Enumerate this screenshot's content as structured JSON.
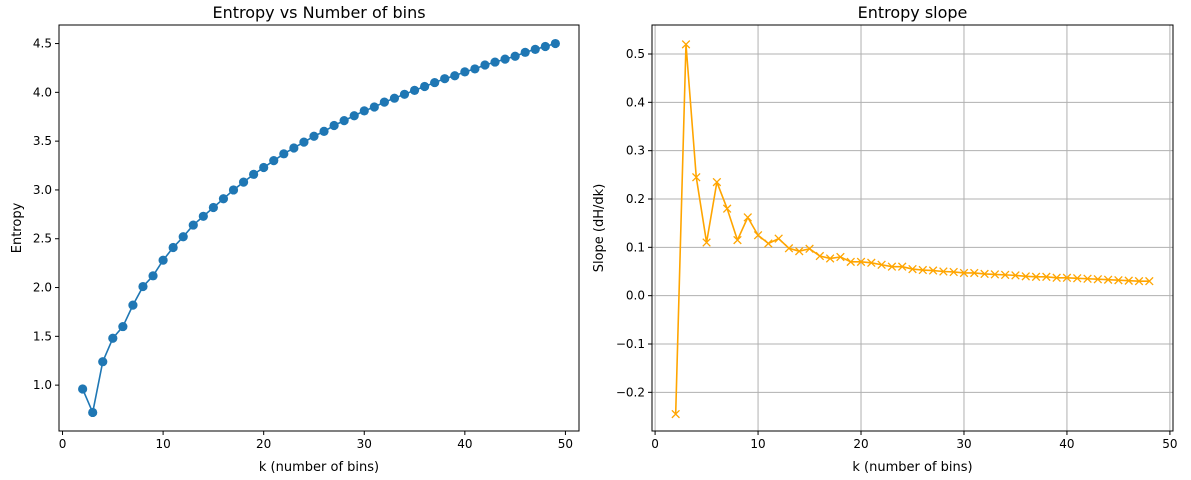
{
  "chart_data": [
    {
      "type": "line",
      "title": "Entropy vs Number of bins",
      "xlabel": "k (number of bins)",
      "ylabel": "Entropy",
      "xlim": [
        -0.35,
        51.35
      ],
      "ylim": [
        0.53,
        4.69
      ],
      "xticks": [
        0,
        10,
        20,
        30,
        40,
        50
      ],
      "yticks": [
        1.0,
        1.5,
        2.0,
        2.5,
        3.0,
        3.5,
        4.0,
        4.5
      ],
      "grid": false,
      "marker": "o",
      "color": "#1f77b4",
      "series": [
        {
          "x": [
            2,
            3,
            4,
            5,
            6,
            7,
            8,
            9,
            10,
            11,
            12,
            13,
            14,
            15,
            16,
            17,
            18,
            19,
            20,
            21,
            22,
            23,
            24,
            25,
            26,
            27,
            28,
            29,
            30,
            31,
            32,
            33,
            34,
            35,
            36,
            37,
            38,
            39,
            40,
            41,
            42,
            43,
            44,
            45,
            46,
            47,
            48,
            49
          ],
          "values": [
            0.96,
            0.72,
            1.24,
            1.48,
            1.6,
            1.82,
            2.01,
            2.12,
            2.28,
            2.41,
            2.52,
            2.64,
            2.73,
            2.82,
            2.91,
            3.0,
            3.08,
            3.16,
            3.23,
            3.3,
            3.37,
            3.43,
            3.49,
            3.55,
            3.6,
            3.66,
            3.71,
            3.76,
            3.81,
            3.85,
            3.9,
            3.94,
            3.98,
            4.02,
            4.06,
            4.1,
            4.14,
            4.17,
            4.21,
            4.24,
            4.28,
            4.31,
            4.34,
            4.37,
            4.41,
            4.44,
            4.47,
            4.5
          ]
        }
      ]
    },
    {
      "type": "line",
      "title": "Entropy slope",
      "xlabel": "k (number of bins)",
      "ylabel": "Slope (dH/dk)",
      "xlim": [
        -0.3,
        50.3
      ],
      "ylim": [
        -0.28,
        0.56
      ],
      "xticks": [
        0,
        10,
        20,
        30,
        40,
        50
      ],
      "yticks": [
        -0.2,
        -0.1,
        0.0,
        0.1,
        0.2,
        0.3,
        0.4,
        0.5
      ],
      "grid": true,
      "marker": "x",
      "color": "#ffa500",
      "series": [
        {
          "x": [
            2,
            3,
            4,
            5,
            6,
            7,
            8,
            9,
            10,
            11,
            12,
            13,
            14,
            15,
            16,
            17,
            18,
            19,
            20,
            21,
            22,
            23,
            24,
            25,
            26,
            27,
            28,
            29,
            30,
            31,
            32,
            33,
            34,
            35,
            36,
            37,
            38,
            39,
            40,
            41,
            42,
            43,
            44,
            45,
            46,
            47,
            48
          ],
          "values": [
            -0.245,
            0.52,
            0.245,
            0.11,
            0.235,
            0.18,
            0.115,
            0.162,
            0.125,
            0.108,
            0.118,
            0.098,
            0.092,
            0.097,
            0.082,
            0.077,
            0.08,
            0.07,
            0.07,
            0.068,
            0.064,
            0.06,
            0.06,
            0.055,
            0.053,
            0.052,
            0.05,
            0.049,
            0.047,
            0.047,
            0.045,
            0.044,
            0.043,
            0.042,
            0.04,
            0.039,
            0.039,
            0.037,
            0.037,
            0.036,
            0.035,
            0.034,
            0.033,
            0.032,
            0.031,
            0.03,
            0.03
          ]
        }
      ]
    }
  ]
}
